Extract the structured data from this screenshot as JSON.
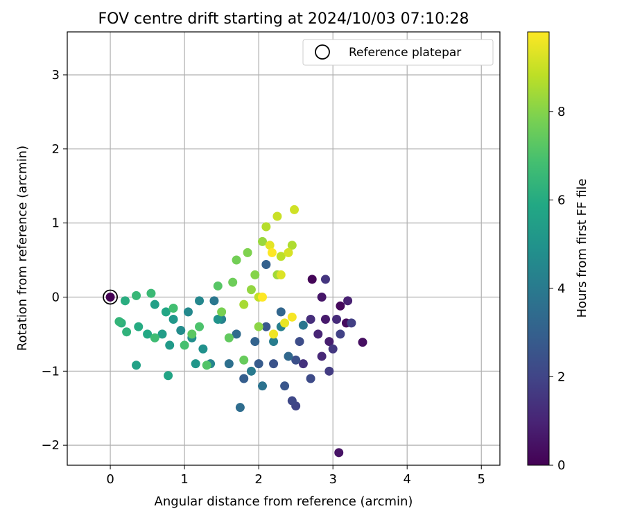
{
  "chart_data": {
    "type": "scatter",
    "title": "FOV centre drift starting at 2024/10/03 07:10:28",
    "xlabel": "Angular distance from reference (arcmin)",
    "ylabel": "Rotation from reference (arcmin)",
    "xlim": [
      -0.58,
      5.25
    ],
    "ylim": [
      -2.27,
      3.58
    ],
    "x_ticks": [
      0,
      1,
      2,
      3,
      4,
      5
    ],
    "x_tick_labels": [
      "0",
      "1",
      "2",
      "3",
      "4",
      "5"
    ],
    "y_ticks": [
      -2,
      -1,
      0,
      1,
      2,
      3
    ],
    "y_tick_labels": [
      "−2",
      "−1",
      "0",
      "1",
      "2",
      "3"
    ],
    "grid": true,
    "legend": {
      "position": "top-right",
      "label": "Reference platepar"
    },
    "reference_point": {
      "x": 0,
      "y": 0
    },
    "colorbar": {
      "label": "Hours from first FF file",
      "min": 0,
      "max": 9.8,
      "ticks": [
        0,
        2,
        4,
        6,
        8
      ],
      "tick_labels": [
        "0",
        "2",
        "4",
        "6",
        "8"
      ],
      "colormap": "viridis",
      "colors": [
        "#440154",
        "#482475",
        "#414487",
        "#355f8d",
        "#2a788e",
        "#21918c",
        "#22a884",
        "#44bf70",
        "#7ad151",
        "#bddf26",
        "#fde725"
      ]
    },
    "series": [
      {
        "color_value_unit": "hours",
        "points": [
          [
            0.0,
            0.0,
            0.0
          ],
          [
            2.72,
            0.24,
            0.1
          ],
          [
            3.1,
            -0.12,
            0.2
          ],
          [
            3.18,
            -0.35,
            0.3
          ],
          [
            3.4,
            -0.61,
            0.4
          ],
          [
            3.08,
            -2.1,
            0.5
          ],
          [
            2.85,
            0.0,
            0.6
          ],
          [
            2.9,
            -0.3,
            0.7
          ],
          [
            2.95,
            -0.6,
            0.8
          ],
          [
            3.2,
            -0.05,
            0.9
          ],
          [
            2.8,
            -0.5,
            1.0
          ],
          [
            2.85,
            -0.8,
            1.1
          ],
          [
            3.05,
            -0.3,
            1.2
          ],
          [
            2.7,
            -0.3,
            1.3
          ],
          [
            2.6,
            -0.9,
            1.4
          ],
          [
            2.9,
            0.24,
            1.5
          ],
          [
            3.0,
            -0.7,
            1.6
          ],
          [
            2.95,
            -1.0,
            1.7
          ],
          [
            3.25,
            -0.35,
            1.8
          ],
          [
            3.1,
            -0.5,
            1.9
          ],
          [
            2.5,
            -1.47,
            2.0
          ],
          [
            2.45,
            -1.4,
            2.1
          ],
          [
            2.7,
            -1.1,
            2.2
          ],
          [
            2.55,
            -0.6,
            2.3
          ],
          [
            2.5,
            -0.85,
            2.4
          ],
          [
            2.2,
            -0.9,
            2.5
          ],
          [
            2.35,
            -1.2,
            2.6
          ],
          [
            2.1,
            -0.4,
            2.7
          ],
          [
            2.0,
            -0.9,
            2.8
          ],
          [
            1.8,
            -1.1,
            2.9
          ],
          [
            2.1,
            0.44,
            3.0
          ],
          [
            1.95,
            -0.6,
            3.1
          ],
          [
            2.3,
            -0.2,
            3.2
          ],
          [
            2.4,
            -0.8,
            3.3
          ],
          [
            1.7,
            -0.5,
            3.4
          ],
          [
            1.75,
            -1.49,
            3.5
          ],
          [
            1.6,
            -0.9,
            3.6
          ],
          [
            2.05,
            -1.2,
            3.7
          ],
          [
            2.6,
            -0.38,
            3.8
          ],
          [
            1.4,
            -0.05,
            3.9
          ],
          [
            1.9,
            -1.0,
            4.0
          ],
          [
            2.2,
            -0.6,
            4.1
          ],
          [
            2.3,
            -0.4,
            4.2
          ],
          [
            1.5,
            -0.3,
            4.3
          ],
          [
            1.35,
            -0.9,
            4.4
          ],
          [
            1.2,
            -0.05,
            4.5
          ],
          [
            1.05,
            -0.2,
            4.6
          ],
          [
            0.95,
            -0.45,
            4.7
          ],
          [
            1.1,
            -0.55,
            4.8
          ],
          [
            1.25,
            -0.7,
            4.9
          ],
          [
            1.45,
            -0.3,
            5.0
          ],
          [
            1.15,
            -0.9,
            5.1
          ],
          [
            0.85,
            -0.3,
            5.2
          ],
          [
            0.8,
            -0.65,
            5.3
          ],
          [
            0.7,
            -0.5,
            5.4
          ],
          [
            0.6,
            -0.1,
            5.5
          ],
          [
            0.35,
            -0.92,
            5.6
          ],
          [
            0.78,
            -1.06,
            5.7
          ],
          [
            0.75,
            -0.2,
            5.8
          ],
          [
            0.5,
            -0.5,
            5.9
          ],
          [
            0.38,
            -0.4,
            6.0
          ],
          [
            0.2,
            -0.05,
            6.1
          ],
          [
            0.15,
            -0.35,
            6.2
          ],
          [
            0.22,
            -0.47,
            6.3
          ],
          [
            0.12,
            -0.33,
            6.4
          ],
          [
            0.35,
            0.02,
            6.5
          ],
          [
            0.55,
            0.05,
            6.6
          ],
          [
            0.6,
            -0.55,
            6.7
          ],
          [
            0.85,
            -0.15,
            6.8
          ],
          [
            1.0,
            -0.65,
            6.9
          ],
          [
            1.2,
            -0.4,
            7.0
          ],
          [
            1.3,
            -0.92,
            7.1
          ],
          [
            1.45,
            0.15,
            7.2
          ],
          [
            1.1,
            -0.5,
            7.3
          ],
          [
            1.6,
            -0.55,
            7.4
          ],
          [
            1.8,
            -0.85,
            7.5
          ],
          [
            1.65,
            0.2,
            7.6
          ],
          [
            1.7,
            0.5,
            7.7
          ],
          [
            1.5,
            -0.2,
            7.8
          ],
          [
            1.85,
            0.6,
            7.9
          ],
          [
            1.95,
            0.3,
            8.0
          ],
          [
            2.0,
            -0.4,
            8.1
          ],
          [
            1.9,
            0.1,
            8.2
          ],
          [
            2.05,
            0.75,
            8.3
          ],
          [
            2.25,
            0.3,
            8.4
          ],
          [
            1.8,
            -0.1,
            8.5
          ],
          [
            2.45,
            0.7,
            8.6
          ],
          [
            2.1,
            0.95,
            8.7
          ],
          [
            2.3,
            0.55,
            8.8
          ],
          [
            2.0,
            0.0,
            8.9
          ],
          [
            2.25,
            1.09,
            9.0
          ],
          [
            2.48,
            1.18,
            9.1
          ],
          [
            2.4,
            0.6,
            9.2
          ],
          [
            2.3,
            0.3,
            9.3
          ],
          [
            2.15,
            0.7,
            9.4
          ],
          [
            2.35,
            -0.35,
            9.5
          ],
          [
            2.2,
            -0.5,
            9.6
          ],
          [
            2.45,
            -0.27,
            9.7
          ],
          [
            2.18,
            0.6,
            9.8
          ],
          [
            2.05,
            0.0,
            9.8
          ]
        ]
      }
    ]
  }
}
